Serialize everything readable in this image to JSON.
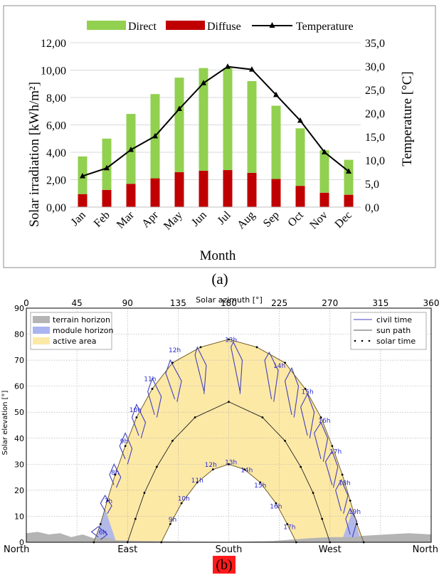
{
  "chart_data": [
    {
      "type": "bar",
      "panel_label": "(a)",
      "title": "",
      "xlabel": "Month",
      "ylabel": "Solar  irradiation [kWh/m²]",
      "ylabel_right": "Temperature [°C]",
      "categories": [
        "Jan",
        "Feb",
        "Mar",
        "Apr",
        "May",
        "Jun",
        "Jul",
        "Aug",
        "Sep",
        "Oct",
        "Nov",
        "Dec"
      ],
      "stacked": true,
      "ylim": [
        0,
        12
      ],
      "y_ticks": [
        "0,00",
        "2,00",
        "4,00",
        "6,00",
        "8,00",
        "10,00",
        "12,00"
      ],
      "y2lim": [
        0,
        35
      ],
      "y2_ticks": [
        "0,0",
        "5,0",
        "10,0",
        "15,0",
        "20,0",
        "25,0",
        "30,0",
        "35,0"
      ],
      "series": [
        {
          "name": "Direct",
          "kind": "bar",
          "color": "#92d050",
          "values": [
            2.75,
            3.75,
            5.1,
            6.15,
            6.9,
            7.5,
            7.45,
            6.7,
            5.35,
            4.2,
            3.1,
            2.55
          ]
        },
        {
          "name": "Diffuse",
          "kind": "bar",
          "color": "#c00000",
          "values": [
            0.95,
            1.25,
            1.7,
            2.1,
            2.55,
            2.65,
            2.7,
            2.5,
            2.05,
            1.55,
            1.05,
            0.9
          ]
        },
        {
          "name": "Temperature",
          "kind": "line",
          "axis": "right",
          "color": "#000000",
          "values": [
            6.6,
            8.3,
            12.2,
            15.1,
            20.9,
            26.4,
            29.9,
            29.3,
            23.9,
            18.4,
            11.7,
            7.6
          ]
        }
      ],
      "legend": "top",
      "grid": "horizontal"
    },
    {
      "type": "line",
      "panel_label": "(b)",
      "xlabel": "Solar azimuth [°]",
      "ylabel": "Solar elevation [°]",
      "xlim": [
        0,
        360
      ],
      "ylim": [
        0,
        90
      ],
      "x_ticks": [
        "0",
        "45",
        "90",
        "135",
        "180",
        "225",
        "270",
        "315",
        "360"
      ],
      "y_ticks": [
        "0",
        "10",
        "20",
        "30",
        "40",
        "50",
        "60",
        "70",
        "80",
        "90"
      ],
      "direction_labels": [
        "North",
        "East",
        "South",
        "West",
        "North"
      ],
      "legend_left": [
        {
          "name": "terrain horizon",
          "color": "#b4b4b4"
        },
        {
          "name": "module horizon",
          "color": "#aab4f0"
        },
        {
          "name": "active area",
          "color": "#fde9a6"
        }
      ],
      "legend_right": [
        {
          "name": "civil time",
          "color": "#4040c0"
        },
        {
          "name": "sun path",
          "color": "#555555"
        },
        {
          "name": "solar time",
          "color": "#000000"
        }
      ],
      "summer_path": [
        [
          60,
          0
        ],
        [
          66,
          7
        ],
        [
          72,
          16
        ],
        [
          79,
          26
        ],
        [
          88,
          37
        ],
        [
          98,
          48
        ],
        [
          112,
          59
        ],
        [
          130,
          69
        ],
        [
          155,
          75
        ],
        [
          180,
          78
        ],
        [
          205,
          75
        ],
        [
          230,
          69
        ],
        [
          248,
          59
        ],
        [
          262,
          48
        ],
        [
          272,
          37
        ],
        [
          281,
          26
        ],
        [
          288,
          16
        ],
        [
          294,
          7
        ],
        [
          300,
          0
        ]
      ],
      "equinox_path": [
        [
          90,
          0
        ],
        [
          97,
          9
        ],
        [
          105,
          19
        ],
        [
          116,
          29
        ],
        [
          130,
          39
        ],
        [
          150,
          48
        ],
        [
          180,
          54
        ],
        [
          210,
          48
        ],
        [
          230,
          39
        ],
        [
          244,
          29
        ],
        [
          255,
          19
        ],
        [
          263,
          9
        ],
        [
          270,
          0
        ]
      ],
      "winter_path": [
        [
          120,
          0
        ],
        [
          128,
          7
        ],
        [
          138,
          15
        ],
        [
          152,
          23
        ],
        [
          166,
          28
        ],
        [
          180,
          30
        ],
        [
          194,
          28
        ],
        [
          208,
          23
        ],
        [
          222,
          15
        ],
        [
          232,
          7
        ],
        [
          240,
          0
        ]
      ],
      "summer_hour_labels": [
        "6h",
        "7h",
        "8h",
        "9h",
        "10h",
        "11h",
        "12h",
        "13h",
        "14h",
        "15h",
        "16h",
        "17h",
        "18h",
        "19h"
      ],
      "summer_hour_az": [
        68,
        73,
        79,
        87,
        97,
        110,
        132,
        182,
        225,
        250,
        265,
        275,
        283,
        292
      ],
      "summer_hour_el": [
        3,
        15,
        26,
        38,
        50,
        62,
        73,
        77,
        67,
        57,
        46,
        34,
        22,
        11
      ],
      "winter_hour_labels": [
        "9h",
        "10h",
        "11h",
        "12h",
        "13h",
        "14h",
        "15h",
        "16h",
        "17h"
      ],
      "winter_hour_az": [
        130,
        140,
        152,
        164,
        182,
        196,
        208,
        222,
        234
      ],
      "winter_hour_el": [
        8,
        16,
        23,
        29,
        30,
        27,
        21,
        13,
        5
      ],
      "analemmas": [
        {
          "az": [
            64,
            58,
            64,
            72,
            66
          ],
          "el": [
            2,
            4,
            6,
            3,
            1
          ]
        },
        {
          "az": [
            70,
            66,
            70,
            76,
            72
          ],
          "el": [
            12,
            15,
            18,
            14,
            11
          ]
        },
        {
          "az": [
            78,
            74,
            78,
            84,
            80
          ],
          "el": [
            22,
            26,
            30,
            25,
            21
          ]
        },
        {
          "az": [
            88,
            83,
            88,
            94,
            90
          ],
          "el": [
            32,
            37,
            42,
            36,
            30
          ]
        },
        {
          "az": [
            100,
            94,
            98,
            106,
            102
          ],
          "el": [
            41,
            48,
            53,
            46,
            40
          ]
        },
        {
          "az": [
            114,
            108,
            112,
            120,
            116
          ],
          "el": [
            49,
            58,
            63,
            56,
            48
          ]
        },
        {
          "az": [
            132,
            124,
            128,
            138,
            134
          ],
          "el": [
            55,
            65,
            70,
            62,
            54
          ]
        },
        {
          "az": [
            158,
            150,
            152,
            160,
            158
          ],
          "el": [
            58,
            72,
            75,
            68,
            57
          ]
        },
        {
          "az": [
            190,
            182,
            184,
            192,
            190
          ],
          "el": [
            58,
            75,
            77,
            70,
            57
          ]
        },
        {
          "az": [
            218,
            212,
            216,
            224,
            220
          ],
          "el": [
            55,
            70,
            73,
            66,
            54
          ]
        },
        {
          "az": [
            236,
            230,
            236,
            242,
            238
          ],
          "el": [
            49,
            62,
            67,
            60,
            48
          ]
        },
        {
          "az": [
            250,
            244,
            250,
            256,
            252
          ],
          "el": [
            41,
            52,
            57,
            50,
            40
          ]
        },
        {
          "az": [
            262,
            256,
            262,
            268,
            264
          ],
          "el": [
            32,
            42,
            46,
            40,
            31
          ]
        },
        {
          "az": [
            272,
            266,
            272,
            277,
            273
          ],
          "el": [
            22,
            31,
            35,
            29,
            21
          ]
        },
        {
          "az": [
            280,
            275,
            280,
            286,
            282
          ],
          "el": [
            12,
            20,
            24,
            18,
            11
          ]
        },
        {
          "az": [
            288,
            284,
            288,
            294,
            290
          ],
          "el": [
            3,
            9,
            13,
            8,
            2
          ]
        }
      ],
      "terrain_horizon": [
        [
          0,
          3.5
        ],
        [
          10,
          4
        ],
        [
          20,
          3
        ],
        [
          30,
          3.5
        ],
        [
          40,
          2
        ],
        [
          50,
          3
        ],
        [
          60,
          1.5
        ],
        [
          70,
          2
        ],
        [
          80,
          0.8
        ],
        [
          100,
          0.5
        ],
        [
          140,
          0.3
        ],
        [
          180,
          0.2
        ],
        [
          220,
          0.5
        ],
        [
          250,
          1.5
        ],
        [
          270,
          2
        ],
        [
          290,
          2
        ],
        [
          300,
          2.5
        ],
        [
          320,
          3
        ],
        [
          340,
          3.5
        ],
        [
          360,
          3
        ]
      ],
      "module_horizon_left": [
        [
          60,
          0
        ],
        [
          70,
          13
        ],
        [
          80,
          0
        ]
      ],
      "module_horizon_right": [
        [
          280,
          0
        ],
        [
          290,
          12
        ],
        [
          298,
          0
        ]
      ]
    }
  ]
}
